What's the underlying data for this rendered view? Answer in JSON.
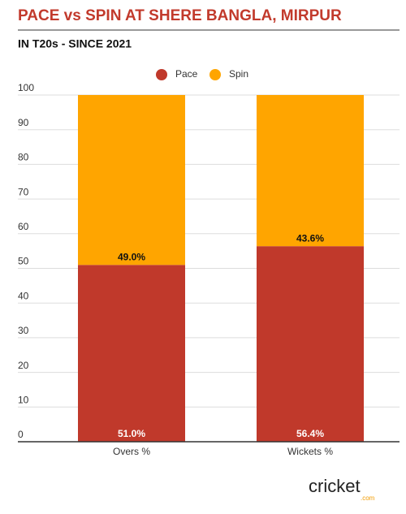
{
  "chart_data": {
    "type": "stacked_bar",
    "title": "PACE vs SPIN AT SHERE BANGLA, MIRPUR",
    "subtitle": "IN T20s - SINCE 2021",
    "categories": [
      "Overs %",
      "Wickets %"
    ],
    "series": [
      {
        "name": "Pace",
        "color": "#c0392b",
        "values": [
          51.0,
          56.4
        ],
        "value_labels": [
          "51.0%",
          "56.4%"
        ]
      },
      {
        "name": "Spin",
        "color": "#ffa500",
        "values": [
          49.0,
          43.6
        ],
        "value_labels": [
          "49.0%",
          "43.6%"
        ]
      }
    ],
    "ylim": [
      0,
      100
    ],
    "yticks": [
      0,
      10,
      20,
      30,
      40,
      50,
      60,
      70,
      80,
      90,
      100
    ],
    "grid": true,
    "legend": "top"
  },
  "logo": {
    "name": "cricket",
    "suffix": ".com"
  }
}
